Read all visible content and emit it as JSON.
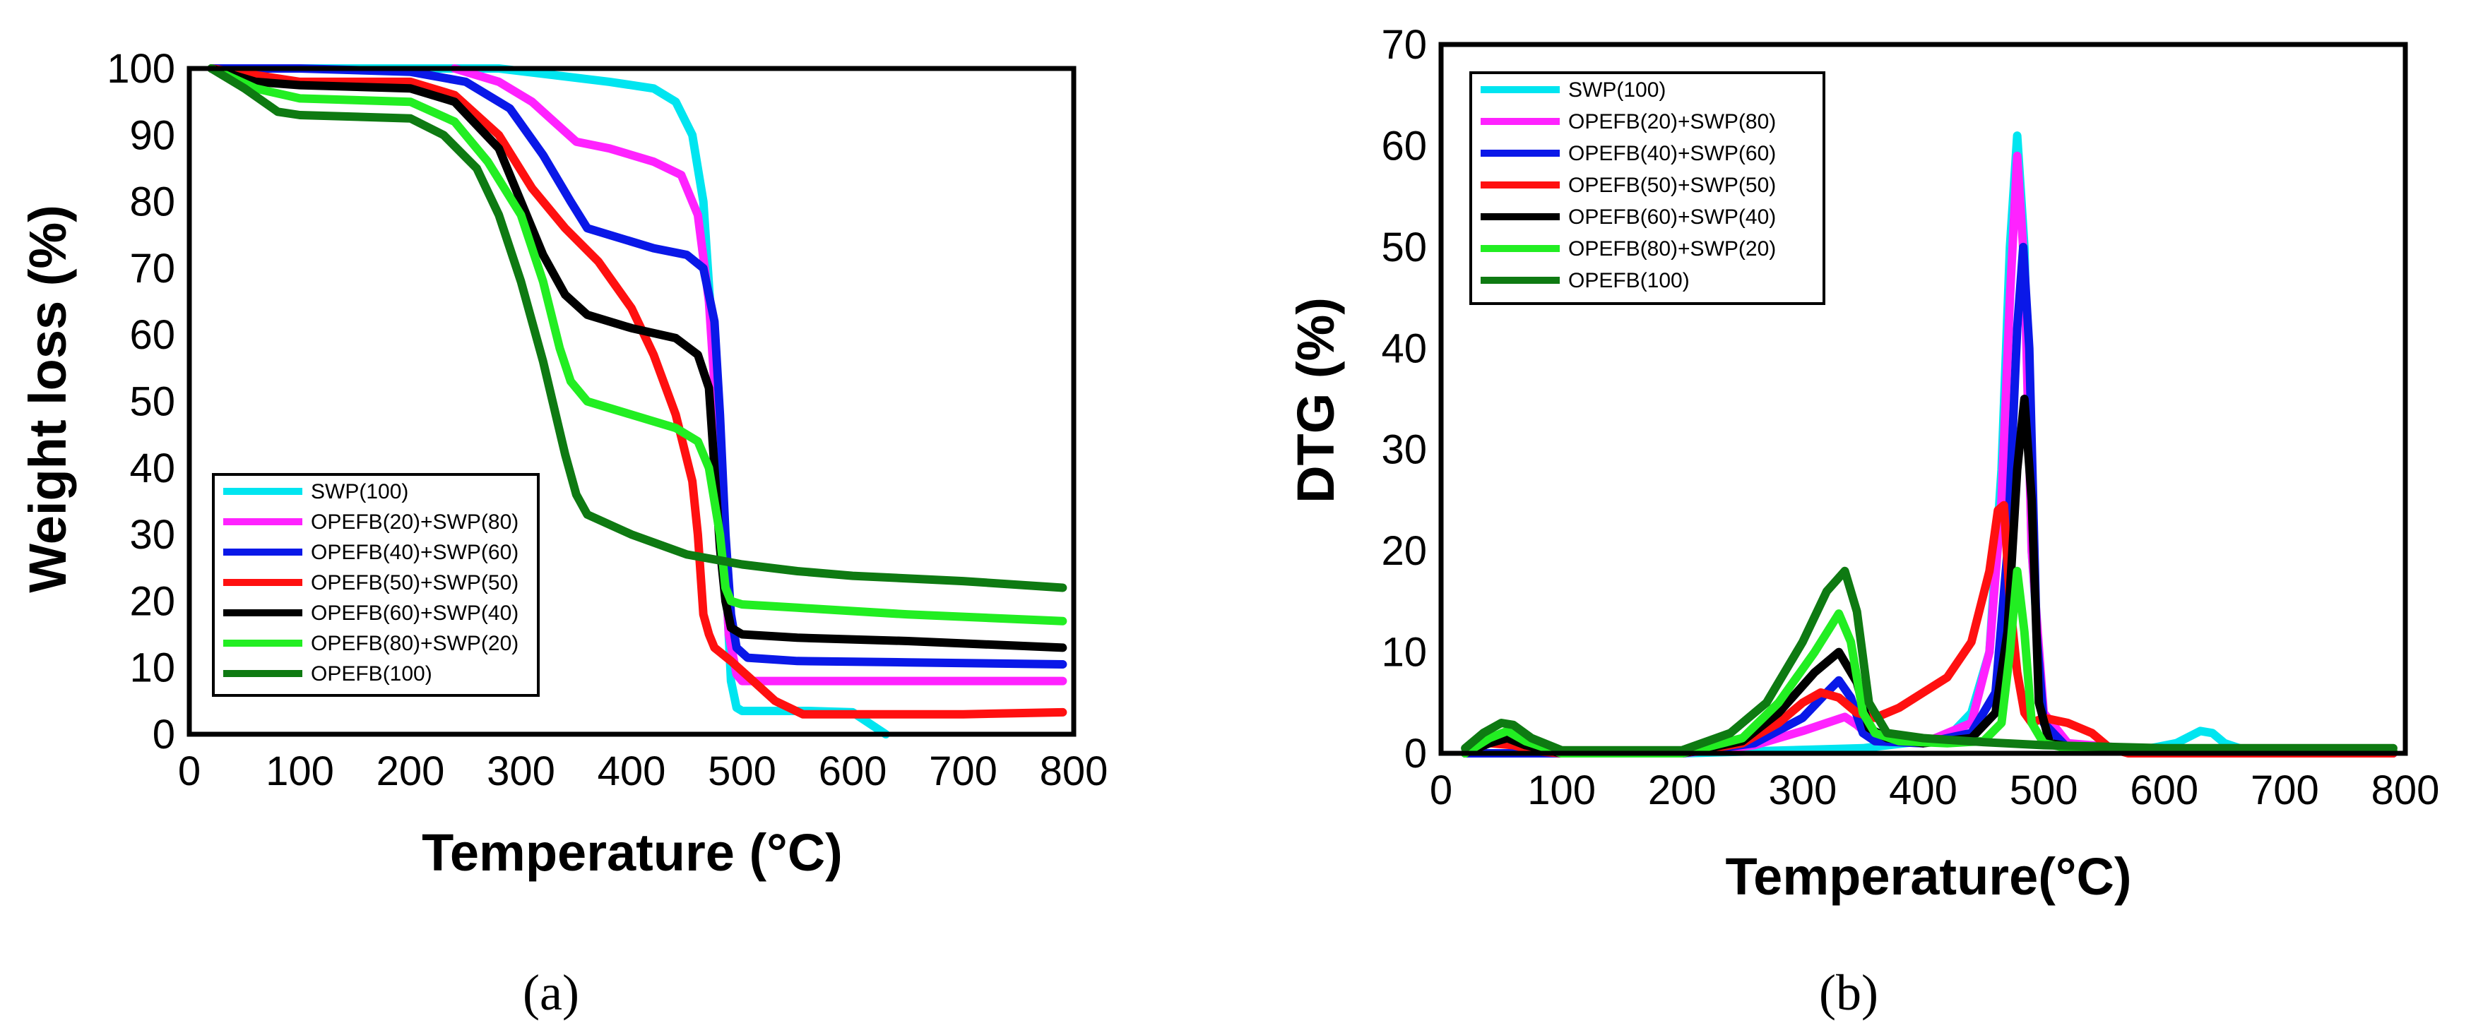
{
  "chart_data": [
    {
      "panel": "(a)",
      "type": "line",
      "xlabel": "Temperature (°C)",
      "ylabel": "Weight loss (%)",
      "xlim": [
        0,
        800
      ],
      "ylim": [
        0,
        100
      ],
      "xticks": [
        0,
        100,
        200,
        300,
        400,
        500,
        600,
        700,
        800
      ],
      "yticks": [
        0,
        10,
        20,
        30,
        40,
        50,
        60,
        70,
        80,
        90,
        100
      ],
      "grid": "horizontal",
      "legend_position": "bottom-left",
      "series": [
        {
          "name": "SWP(100)",
          "color": "#00e5f0",
          "x": [
            60,
            200,
            280,
            330,
            380,
            420,
            440,
            455,
            465,
            475,
            485,
            490,
            495,
            500,
            510,
            560,
            600,
            630
          ],
          "y": [
            100,
            100,
            100,
            99,
            98,
            97,
            95,
            90,
            80,
            55,
            25,
            8,
            4,
            3.5,
            3.5,
            3.5,
            3.3,
            0
          ]
        },
        {
          "name": "OPEFB(20)+SWP(80)",
          "color": "#ff22ff",
          "x": [
            240,
            280,
            310,
            330,
            350,
            380,
            420,
            445,
            460,
            470,
            480,
            488,
            495,
            500,
            520,
            600,
            700,
            790
          ],
          "y": [
            100,
            98,
            95,
            92,
            89,
            88,
            86,
            84,
            78,
            65,
            40,
            15,
            9,
            8,
            8,
            8,
            8,
            8
          ]
        },
        {
          "name": "OPEFB(40)+SWP(60)",
          "color": "#0a18e8",
          "x": [
            20,
            100,
            200,
            250,
            290,
            320,
            345,
            360,
            380,
            420,
            450,
            465,
            475,
            480,
            485,
            490,
            495,
            505,
            550,
            650,
            790
          ],
          "y": [
            100,
            100,
            99.5,
            98,
            94,
            87,
            80,
            76,
            75,
            73,
            72,
            70,
            62,
            48,
            30,
            18,
            13,
            11.5,
            11,
            10.8,
            10.5
          ]
        },
        {
          "name": "OPEFB(50)+SWP(50)",
          "color": "#ff1010",
          "x": [
            20,
            60,
            100,
            200,
            240,
            280,
            310,
            340,
            370,
            400,
            420,
            440,
            455,
            460,
            465,
            470,
            475,
            490,
            510,
            530,
            555,
            600,
            700,
            790
          ],
          "y": [
            100,
            99,
            98,
            98,
            96,
            90,
            82,
            76,
            71,
            64,
            57,
            48,
            38,
            30,
            18,
            15,
            13,
            11,
            8,
            5,
            3,
            3,
            3,
            3.3
          ]
        },
        {
          "name": "OPEFB(60)+SWP(40)",
          "color": "#000000",
          "x": [
            20,
            60,
            100,
            200,
            240,
            280,
            300,
            320,
            340,
            360,
            400,
            440,
            460,
            470,
            475,
            480,
            485,
            490,
            500,
            550,
            650,
            790
          ],
          "y": [
            100,
            98,
            97.5,
            97,
            95,
            88,
            80,
            72,
            66,
            63,
            61,
            59.5,
            57,
            52,
            40,
            28,
            20,
            16,
            15,
            14.5,
            14,
            13
          ]
        },
        {
          "name": "OPEFB(80)+SWP(20)",
          "color": "#22ee22",
          "x": [
            20,
            60,
            100,
            200,
            240,
            270,
            300,
            320,
            335,
            345,
            360,
            400,
            440,
            460,
            470,
            480,
            485,
            490,
            500,
            550,
            650,
            790
          ],
          "y": [
            100,
            97,
            95.5,
            95,
            92,
            86,
            78,
            68,
            58,
            53,
            50,
            48,
            46,
            44,
            40,
            30,
            22,
            20,
            19.5,
            19,
            18,
            17
          ]
        },
        {
          "name": "OPEFB(100)",
          "color": "#0e7a12",
          "x": [
            20,
            50,
            80,
            100,
            200,
            230,
            260,
            280,
            300,
            320,
            340,
            350,
            360,
            400,
            450,
            500,
            550,
            600,
            700,
            790
          ],
          "y": [
            100,
            97,
            93.5,
            93,
            92.5,
            90,
            85,
            78,
            68,
            56,
            42,
            36,
            33,
            30,
            27,
            25.5,
            24.5,
            23.8,
            23,
            22
          ]
        }
      ]
    },
    {
      "panel": "(b)",
      "type": "line",
      "xlabel": "Temperature(°C)",
      "ylabel": "DTG (%)",
      "xlim": [
        0,
        800
      ],
      "ylim": [
        0,
        70
      ],
      "xticks": [
        0,
        100,
        200,
        300,
        400,
        500,
        600,
        700,
        800
      ],
      "yticks": [
        0,
        10,
        20,
        30,
        40,
        50,
        60,
        70
      ],
      "grid": "horizontal",
      "legend_position": "top-left",
      "series": [
        {
          "name": "SWP(100)",
          "color": "#00e5f0",
          "x": [
            20,
            200,
            350,
            420,
            440,
            455,
            465,
            472,
            478,
            484,
            490,
            500,
            520,
            580,
            610,
            630,
            640,
            650,
            670,
            700,
            790
          ],
          "y": [
            0,
            0,
            0.5,
            1.5,
            4,
            10,
            28,
            50,
            61,
            50,
            20,
            3,
            0.5,
            0.3,
            1,
            2.2,
            2,
            1,
            0.2,
            0,
            0
          ]
        },
        {
          "name": "OPEFB(20)+SWP(80)",
          "color": "#ff22ff",
          "x": [
            20,
            200,
            260,
            300,
            320,
            335,
            345,
            360,
            400,
            440,
            455,
            465,
            472,
            478,
            484,
            490,
            500,
            520,
            600,
            790
          ],
          "y": [
            0,
            0,
            0.8,
            2.2,
            3,
            3.6,
            2.8,
            1.2,
            1,
            3,
            10,
            25,
            45,
            59,
            48,
            20,
            4,
            1,
            0.2,
            0
          ]
        },
        {
          "name": "OPEFB(40)+SWP(60)",
          "color": "#0a18e8",
          "x": [
            20,
            200,
            260,
            300,
            320,
            330,
            340,
            350,
            360,
            400,
            440,
            460,
            470,
            478,
            483,
            488,
            494,
            500,
            520,
            790
          ],
          "y": [
            0,
            0,
            1,
            3.5,
            6,
            7.2,
            5.5,
            2,
            1.2,
            1,
            2,
            6,
            20,
            42,
            50,
            40,
            12,
            3,
            0.5,
            0
          ]
        },
        {
          "name": "OPEFB(50)+SWP(50)",
          "color": "#ff1010",
          "x": [
            20,
            40,
            60,
            80,
            100,
            200,
            250,
            280,
            300,
            315,
            330,
            345,
            360,
            380,
            400,
            420,
            440,
            455,
            462,
            467,
            472,
            478,
            484,
            490,
            500,
            520,
            540,
            555,
            570,
            600,
            790
          ],
          "y": [
            0,
            1,
            0.8,
            0.2,
            0,
            0,
            1,
            3,
            5,
            6,
            5.5,
            4,
            3.5,
            4.5,
            6,
            7.5,
            11,
            18,
            24,
            24.5,
            15,
            8,
            4,
            3,
            3.5,
            3,
            2,
            0.5,
            0,
            0,
            0
          ]
        },
        {
          "name": "OPEFB(60)+SWP(40)",
          "color": "#000000",
          "x": [
            20,
            40,
            55,
            70,
            100,
            200,
            250,
            280,
            310,
            330,
            345,
            355,
            370,
            400,
            440,
            460,
            470,
            478,
            484,
            490,
            496,
            505,
            530,
            790
          ],
          "y": [
            0,
            1,
            1.5,
            0.8,
            0,
            0,
            1.2,
            4,
            8,
            10,
            7,
            2.5,
            1.5,
            1,
            1.5,
            4,
            12,
            28,
            35,
            25,
            5,
            1,
            0.5,
            0.2
          ]
        },
        {
          "name": "OPEFB(80)+SWP(20)",
          "color": "#22ee22",
          "x": [
            20,
            40,
            55,
            70,
            100,
            200,
            250,
            280,
            310,
            330,
            340,
            350,
            360,
            380,
            420,
            450,
            465,
            472,
            478,
            484,
            490,
            500,
            520,
            790
          ],
          "y": [
            0,
            1.5,
            2.2,
            1.2,
            0,
            0,
            1.5,
            5,
            10,
            13.8,
            11,
            4,
            2,
            1.2,
            1,
            1.2,
            3,
            10,
            18,
            12,
            3,
            1,
            0.5,
            0.2
          ]
        },
        {
          "name": "OPEFB(100)",
          "color": "#0e7a12",
          "x": [
            20,
            35,
            50,
            60,
            75,
            100,
            200,
            240,
            270,
            300,
            320,
            335,
            345,
            355,
            370,
            400,
            450,
            500,
            600,
            790
          ],
          "y": [
            0.5,
            2,
            3,
            2.8,
            1.5,
            0.3,
            0.3,
            2,
            5,
            11,
            16,
            18,
            14,
            5,
            2,
            1.5,
            1.1,
            0.8,
            0.5,
            0.5
          ]
        }
      ]
    }
  ]
}
